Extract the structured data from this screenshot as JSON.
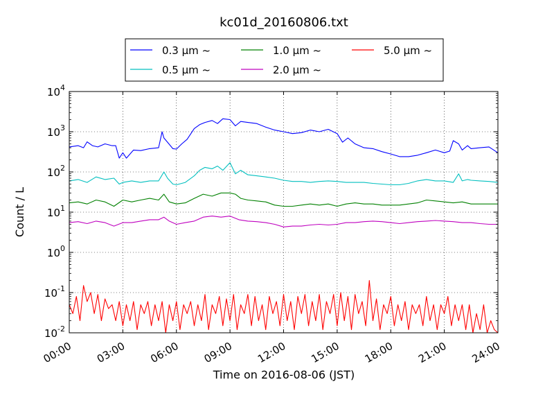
{
  "chart_data": {
    "type": "line",
    "title": "kc01d_20160806.txt",
    "xlabel": "Time on 2016-08-06 (JST)",
    "ylabel": "Count / L",
    "yscale": "log",
    "ylim": [
      0.01,
      10000
    ],
    "xlim": [
      0,
      24
    ],
    "x_tick_values": [
      0,
      3,
      6,
      9,
      12,
      15,
      18,
      21,
      24
    ],
    "x_tick_labels": [
      "00:00",
      "03:00",
      "06:00",
      "09:00",
      "12:00",
      "15:00",
      "18:00",
      "21:00",
      "24:00"
    ],
    "y_ticks": [
      {
        "value": 0.01,
        "base": "10",
        "exp": "-2"
      },
      {
        "value": 0.1,
        "base": "10",
        "exp": "-1"
      },
      {
        "value": 1,
        "base": "10",
        "exp": "0"
      },
      {
        "value": 10,
        "base": "10",
        "exp": "1"
      },
      {
        "value": 100,
        "base": "10",
        "exp": "2"
      },
      {
        "value": 1000,
        "base": "10",
        "exp": "3"
      },
      {
        "value": 10000,
        "base": "10",
        "exp": "4"
      }
    ],
    "grid": true,
    "legend_position": "top-center",
    "series": [
      {
        "name": "0.3 µm ~",
        "color": "#0000ff",
        "x": [
          0,
          0.5,
          0.8,
          1,
          1.3,
          1.6,
          2,
          2.4,
          2.6,
          2.8,
          3.0,
          3.2,
          3.6,
          4,
          4.5,
          5,
          5.2,
          5.3,
          5.5,
          5.8,
          6.0,
          6.3,
          6.6,
          7,
          7.3,
          7.6,
          8,
          8.3,
          8.6,
          9,
          9.3,
          9.6,
          10,
          10.5,
          11,
          11.5,
          12,
          12.5,
          13,
          13.5,
          14,
          14.5,
          15,
          15.3,
          15.6,
          16,
          16.5,
          17,
          17.5,
          18,
          18.5,
          19,
          19.5,
          20,
          20.5,
          21,
          21.3,
          21.5,
          21.8,
          22,
          22.3,
          22.5,
          23,
          23.5,
          24
        ],
        "y": [
          420,
          450,
          400,
          560,
          450,
          420,
          500,
          450,
          450,
          220,
          300,
          220,
          350,
          340,
          380,
          400,
          1000,
          700,
          550,
          380,
          370,
          500,
          650,
          1200,
          1500,
          1700,
          1900,
          1600,
          2100,
          2000,
          1400,
          1800,
          1700,
          1600,
          1300,
          1100,
          1000,
          900,
          950,
          1100,
          1000,
          1150,
          900,
          550,
          700,
          500,
          400,
          380,
          320,
          280,
          240,
          240,
          260,
          300,
          350,
          300,
          330,
          600,
          500,
          350,
          450,
          380,
          400,
          420,
          300
        ]
      },
      {
        "name": "0.5 µm ~",
        "color": "#00bfbf",
        "x": [
          0,
          0.5,
          1,
          1.5,
          2,
          2.5,
          2.8,
          3,
          3.5,
          4,
          4.5,
          5,
          5.3,
          5.5,
          5.8,
          6,
          6.5,
          7,
          7.3,
          7.6,
          8,
          8.3,
          8.6,
          9,
          9.3,
          9.6,
          10,
          10.5,
          11,
          11.5,
          12,
          12.5,
          13,
          13.5,
          14,
          14.5,
          15,
          15.5,
          16,
          16.5,
          17,
          17.5,
          18,
          18.5,
          19,
          19.5,
          20,
          20.5,
          21,
          21.5,
          21.8,
          22,
          22.3,
          22.5,
          23,
          23.5,
          24
        ],
        "y": [
          60,
          65,
          55,
          75,
          65,
          70,
          50,
          55,
          60,
          55,
          60,
          60,
          100,
          70,
          50,
          48,
          55,
          80,
          110,
          130,
          120,
          140,
          110,
          170,
          90,
          110,
          85,
          80,
          75,
          70,
          62,
          58,
          58,
          55,
          58,
          60,
          58,
          55,
          55,
          55,
          52,
          50,
          48,
          48,
          52,
          60,
          65,
          60,
          60,
          55,
          90,
          60,
          65,
          62,
          60,
          58,
          55
        ]
      },
      {
        "name": "1.0 µm ~",
        "color": "#008000",
        "x": [
          0,
          0.5,
          1,
          1.5,
          2,
          2.5,
          3,
          3.5,
          4,
          4.5,
          5,
          5.3,
          5.6,
          6,
          6.5,
          7,
          7.5,
          8,
          8.5,
          9,
          9.3,
          9.6,
          10,
          10.5,
          11,
          11.5,
          12,
          12.5,
          13,
          13.5,
          14,
          14.5,
          15,
          15.5,
          16,
          16.5,
          17,
          17.5,
          18,
          18.5,
          19,
          19.5,
          20,
          20.5,
          21,
          21.5,
          22,
          22.5,
          23,
          23.5,
          24
        ],
        "y": [
          17,
          18,
          16,
          20,
          18,
          14,
          20,
          18,
          20,
          22,
          20,
          28,
          18,
          16,
          17,
          22,
          28,
          25,
          30,
          30,
          28,
          22,
          20,
          19,
          18,
          15,
          14,
          14,
          15,
          16,
          15,
          16,
          14,
          16,
          17,
          16,
          16,
          15,
          15,
          15,
          16,
          17,
          20,
          19,
          18,
          17,
          18,
          16,
          16,
          16,
          16
        ]
      },
      {
        "name": "2.0 µm ~",
        "color": "#bf00bf",
        "x": [
          0,
          0.5,
          1,
          1.5,
          2,
          2.5,
          3,
          3.5,
          4,
          4.5,
          5,
          5.3,
          5.6,
          6,
          6.5,
          7,
          7.5,
          8,
          8.5,
          9,
          9.5,
          10,
          10.5,
          11,
          11.5,
          12,
          12.5,
          13,
          13.5,
          14,
          14.5,
          15,
          15.5,
          16,
          16.5,
          17,
          17.5,
          18,
          18.5,
          19,
          19.5,
          20,
          20.5,
          21,
          21.5,
          22,
          22.5,
          23,
          23.5,
          24
        ],
        "y": [
          5.5,
          5.8,
          5.2,
          6.0,
          5.5,
          4.5,
          5.5,
          5.5,
          6.0,
          6.5,
          6.5,
          7.5,
          6.0,
          5.0,
          5.5,
          6.0,
          7.5,
          8.0,
          7.5,
          8.0,
          6.5,
          6.0,
          5.8,
          5.5,
          5.0,
          4.3,
          4.5,
          4.5,
          4.8,
          5.0,
          4.8,
          5.0,
          5.5,
          5.5,
          5.8,
          6.0,
          5.8,
          5.5,
          5.2,
          5.5,
          5.8,
          6.0,
          6.2,
          6.0,
          5.8,
          5.5,
          5.5,
          5.2,
          5.0,
          5.0
        ]
      },
      {
        "name": "5.0 µm ~",
        "color": "#ff0000",
        "x": [
          0,
          0.2,
          0.4,
          0.6,
          0.8,
          1.0,
          1.2,
          1.4,
          1.6,
          1.8,
          2.0,
          2.2,
          2.4,
          2.6,
          2.8,
          3.0,
          3.2,
          3.4,
          3.6,
          3.8,
          4.0,
          4.2,
          4.4,
          4.6,
          4.8,
          5.0,
          5.2,
          5.4,
          5.6,
          5.8,
          6.0,
          6.2,
          6.4,
          6.6,
          6.8,
          7.0,
          7.2,
          7.4,
          7.6,
          7.8,
          8.0,
          8.2,
          8.4,
          8.6,
          8.8,
          9.0,
          9.2,
          9.4,
          9.6,
          9.8,
          10.0,
          10.2,
          10.4,
          10.6,
          10.8,
          11.0,
          11.2,
          11.4,
          11.6,
          11.8,
          12.0,
          12.2,
          12.4,
          12.6,
          12.8,
          13.0,
          13.2,
          13.4,
          13.6,
          13.8,
          14.0,
          14.2,
          14.4,
          14.6,
          14.8,
          15.0,
          15.2,
          15.4,
          15.6,
          15.8,
          16.0,
          16.2,
          16.4,
          16.6,
          16.8,
          17.0,
          17.2,
          17.4,
          17.6,
          17.8,
          18.0,
          18.2,
          18.4,
          18.6,
          18.8,
          19.0,
          19.2,
          19.4,
          19.6,
          19.8,
          20.0,
          20.2,
          20.4,
          20.6,
          20.8,
          21.0,
          21.2,
          21.4,
          21.6,
          21.8,
          22.0,
          22.2,
          22.4,
          22.6,
          22.8,
          23.0,
          23.2,
          23.4,
          23.6,
          23.8,
          24.0
        ],
        "y": [
          0.05,
          0.03,
          0.08,
          0.02,
          0.15,
          0.06,
          0.1,
          0.03,
          0.09,
          0.02,
          0.07,
          0.04,
          0.05,
          0.02,
          0.06,
          0.015,
          0.05,
          0.02,
          0.06,
          0.012,
          0.05,
          0.03,
          0.06,
          0.015,
          0.05,
          0.02,
          0.06,
          0.01,
          0.05,
          0.02,
          0.06,
          0.012,
          0.05,
          0.03,
          0.06,
          0.015,
          0.05,
          0.02,
          0.09,
          0.012,
          0.05,
          0.03,
          0.08,
          0.015,
          0.07,
          0.02,
          0.09,
          0.012,
          0.05,
          0.03,
          0.09,
          0.015,
          0.08,
          0.02,
          0.05,
          0.012,
          0.08,
          0.03,
          0.06,
          0.015,
          0.09,
          0.02,
          0.06,
          0.012,
          0.08,
          0.03,
          0.09,
          0.015,
          0.06,
          0.02,
          0.09,
          0.012,
          0.06,
          0.03,
          0.09,
          0.015,
          0.1,
          0.02,
          0.08,
          0.012,
          0.09,
          0.03,
          0.06,
          0.015,
          0.2,
          0.02,
          0.07,
          0.012,
          0.05,
          0.03,
          0.08,
          0.015,
          0.05,
          0.02,
          0.06,
          0.012,
          0.05,
          0.03,
          0.05,
          0.015,
          0.08,
          0.02,
          0.05,
          0.012,
          0.05,
          0.03,
          0.08,
          0.015,
          0.05,
          0.02,
          0.05,
          0.012,
          0.05,
          0.01,
          0.03,
          0.012,
          0.05,
          0.01,
          0.02,
          0.012,
          0.01
        ]
      }
    ]
  }
}
